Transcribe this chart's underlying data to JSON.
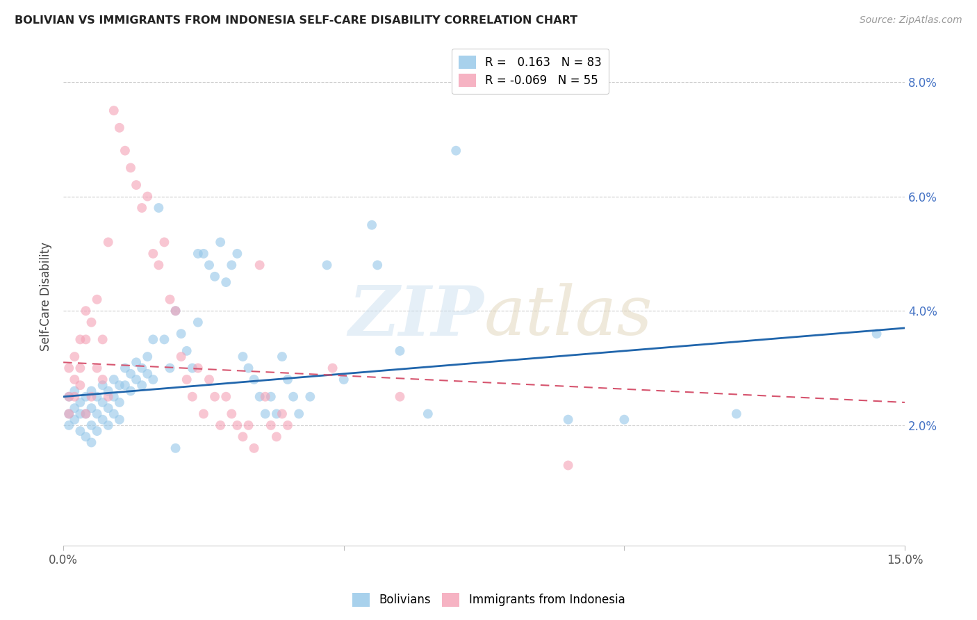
{
  "title": "BOLIVIAN VS IMMIGRANTS FROM INDONESIA SELF-CARE DISABILITY CORRELATION CHART",
  "source": "Source: ZipAtlas.com",
  "ylabel": "Self-Care Disability",
  "xlim": [
    0.0,
    0.15
  ],
  "ylim": [
    -0.001,
    0.086
  ],
  "yticks": [
    0.02,
    0.04,
    0.06,
    0.08
  ],
  "ytick_labels": [
    "2.0%",
    "4.0%",
    "6.0%",
    "8.0%"
  ],
  "blue_color": "#93c6e8",
  "pink_color": "#f4a0b5",
  "line_blue": "#2166ac",
  "line_pink": "#d6546e",
  "blue_line_x": [
    0.0,
    0.15
  ],
  "blue_line_y": [
    0.025,
    0.037
  ],
  "pink_line_x": [
    0.0,
    0.15
  ],
  "pink_line_y": [
    0.031,
    0.024
  ],
  "blue_scatter": [
    [
      0.001,
      0.022
    ],
    [
      0.001,
      0.025
    ],
    [
      0.001,
      0.02
    ],
    [
      0.002,
      0.023
    ],
    [
      0.002,
      0.026
    ],
    [
      0.002,
      0.021
    ],
    [
      0.003,
      0.024
    ],
    [
      0.003,
      0.022
    ],
    [
      0.003,
      0.019
    ],
    [
      0.004,
      0.025
    ],
    [
      0.004,
      0.022
    ],
    [
      0.004,
      0.018
    ],
    [
      0.005,
      0.026
    ],
    [
      0.005,
      0.023
    ],
    [
      0.005,
      0.02
    ],
    [
      0.005,
      0.017
    ],
    [
      0.006,
      0.025
    ],
    [
      0.006,
      0.022
    ],
    [
      0.006,
      0.019
    ],
    [
      0.007,
      0.027
    ],
    [
      0.007,
      0.024
    ],
    [
      0.007,
      0.021
    ],
    [
      0.008,
      0.026
    ],
    [
      0.008,
      0.023
    ],
    [
      0.008,
      0.02
    ],
    [
      0.009,
      0.028
    ],
    [
      0.009,
      0.025
    ],
    [
      0.009,
      0.022
    ],
    [
      0.01,
      0.027
    ],
    [
      0.01,
      0.024
    ],
    [
      0.01,
      0.021
    ],
    [
      0.011,
      0.03
    ],
    [
      0.011,
      0.027
    ],
    [
      0.012,
      0.029
    ],
    [
      0.012,
      0.026
    ],
    [
      0.013,
      0.031
    ],
    [
      0.013,
      0.028
    ],
    [
      0.014,
      0.03
    ],
    [
      0.014,
      0.027
    ],
    [
      0.015,
      0.032
    ],
    [
      0.015,
      0.029
    ],
    [
      0.016,
      0.035
    ],
    [
      0.016,
      0.028
    ],
    [
      0.017,
      0.058
    ],
    [
      0.018,
      0.035
    ],
    [
      0.019,
      0.03
    ],
    [
      0.02,
      0.04
    ],
    [
      0.02,
      0.016
    ],
    [
      0.021,
      0.036
    ],
    [
      0.022,
      0.033
    ],
    [
      0.023,
      0.03
    ],
    [
      0.024,
      0.05
    ],
    [
      0.024,
      0.038
    ],
    [
      0.025,
      0.05
    ],
    [
      0.026,
      0.048
    ],
    [
      0.027,
      0.046
    ],
    [
      0.028,
      0.052
    ],
    [
      0.029,
      0.045
    ],
    [
      0.03,
      0.048
    ],
    [
      0.031,
      0.05
    ],
    [
      0.032,
      0.032
    ],
    [
      0.033,
      0.03
    ],
    [
      0.034,
      0.028
    ],
    [
      0.035,
      0.025
    ],
    [
      0.036,
      0.022
    ],
    [
      0.037,
      0.025
    ],
    [
      0.038,
      0.022
    ],
    [
      0.039,
      0.032
    ],
    [
      0.04,
      0.028
    ],
    [
      0.041,
      0.025
    ],
    [
      0.042,
      0.022
    ],
    [
      0.044,
      0.025
    ],
    [
      0.047,
      0.048
    ],
    [
      0.05,
      0.028
    ],
    [
      0.055,
      0.055
    ],
    [
      0.056,
      0.048
    ],
    [
      0.06,
      0.033
    ],
    [
      0.065,
      0.022
    ],
    [
      0.07,
      0.068
    ],
    [
      0.09,
      0.021
    ],
    [
      0.1,
      0.021
    ],
    [
      0.12,
      0.022
    ],
    [
      0.145,
      0.036
    ]
  ],
  "pink_scatter": [
    [
      0.001,
      0.03
    ],
    [
      0.001,
      0.025
    ],
    [
      0.001,
      0.022
    ],
    [
      0.002,
      0.032
    ],
    [
      0.002,
      0.028
    ],
    [
      0.002,
      0.025
    ],
    [
      0.003,
      0.035
    ],
    [
      0.003,
      0.03
    ],
    [
      0.003,
      0.027
    ],
    [
      0.004,
      0.04
    ],
    [
      0.004,
      0.035
    ],
    [
      0.004,
      0.022
    ],
    [
      0.005,
      0.038
    ],
    [
      0.005,
      0.025
    ],
    [
      0.006,
      0.042
    ],
    [
      0.006,
      0.03
    ],
    [
      0.007,
      0.035
    ],
    [
      0.007,
      0.028
    ],
    [
      0.008,
      0.052
    ],
    [
      0.008,
      0.025
    ],
    [
      0.009,
      0.075
    ],
    [
      0.01,
      0.072
    ],
    [
      0.011,
      0.068
    ],
    [
      0.012,
      0.065
    ],
    [
      0.013,
      0.062
    ],
    [
      0.014,
      0.058
    ],
    [
      0.015,
      0.06
    ],
    [
      0.016,
      0.05
    ],
    [
      0.017,
      0.048
    ],
    [
      0.018,
      0.052
    ],
    [
      0.019,
      0.042
    ],
    [
      0.02,
      0.04
    ],
    [
      0.021,
      0.032
    ],
    [
      0.022,
      0.028
    ],
    [
      0.023,
      0.025
    ],
    [
      0.024,
      0.03
    ],
    [
      0.025,
      0.022
    ],
    [
      0.026,
      0.028
    ],
    [
      0.027,
      0.025
    ],
    [
      0.028,
      0.02
    ],
    [
      0.029,
      0.025
    ],
    [
      0.03,
      0.022
    ],
    [
      0.031,
      0.02
    ],
    [
      0.032,
      0.018
    ],
    [
      0.033,
      0.02
    ],
    [
      0.034,
      0.016
    ],
    [
      0.035,
      0.048
    ],
    [
      0.036,
      0.025
    ],
    [
      0.037,
      0.02
    ],
    [
      0.038,
      0.018
    ],
    [
      0.039,
      0.022
    ],
    [
      0.04,
      0.02
    ],
    [
      0.048,
      0.03
    ],
    [
      0.06,
      0.025
    ],
    [
      0.09,
      0.013
    ]
  ]
}
